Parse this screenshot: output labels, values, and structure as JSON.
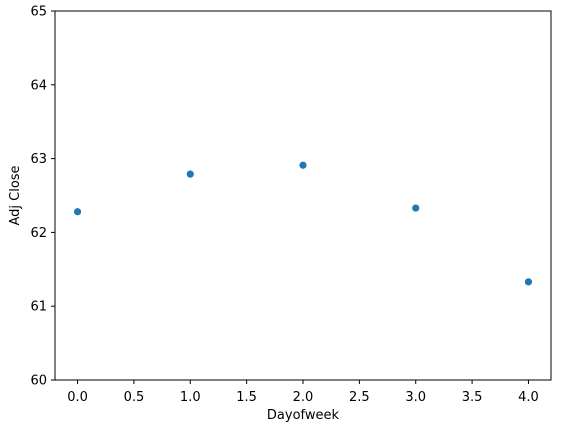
{
  "chart_data": {
    "type": "scatter",
    "title": "",
    "xlabel": "Dayofweek",
    "ylabel": "Adj Close",
    "xlim": [
      -0.2,
      4.2
    ],
    "ylim": [
      60,
      65
    ],
    "grid": false,
    "x_ticks": [
      0.0,
      0.5,
      1.0,
      1.5,
      2.0,
      2.5,
      3.0,
      3.5,
      4.0
    ],
    "x_tick_labels": [
      "0.0",
      "0.5",
      "1.0",
      "1.5",
      "2.0",
      "2.5",
      "3.0",
      "3.5",
      "4.0"
    ],
    "y_ticks": [
      60,
      61,
      62,
      63,
      64,
      65
    ],
    "y_tick_labels": [
      "60",
      "61",
      "62",
      "63",
      "64",
      "65"
    ],
    "points": [
      {
        "x": 0,
        "y": 62.28
      },
      {
        "x": 1,
        "y": 62.79
      },
      {
        "x": 2,
        "y": 62.91
      },
      {
        "x": 3,
        "y": 62.33
      },
      {
        "x": 4,
        "y": 61.33
      }
    ],
    "marker_color": "#1f77b4"
  }
}
